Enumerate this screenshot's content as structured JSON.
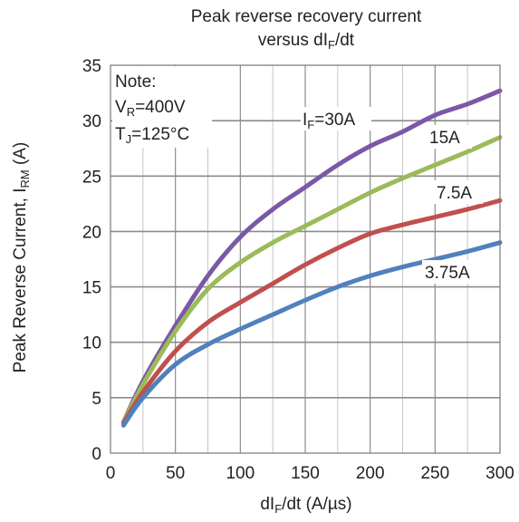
{
  "chart_data": {
    "type": "line",
    "title_line1": "Peak reverse recovery current",
    "title_line2": {
      "pre": "versus dI",
      "sub": "F",
      "post": "/dt"
    },
    "xlabel": {
      "pre": "dI",
      "sub": "F",
      "post": "/dt (A/µs)"
    },
    "ylabel": {
      "pre": "Peak Reverse Current, I",
      "sub": "RM",
      "post": " (A)"
    },
    "xlim": [
      0,
      300
    ],
    "ylim": [
      0,
      35
    ],
    "x_ticks": [
      "0",
      "50",
      "100",
      "150",
      "200",
      "250",
      "300"
    ],
    "y_ticks": [
      "0",
      "5",
      "10",
      "15",
      "20",
      "25",
      "30",
      "35"
    ],
    "grid": true,
    "note": {
      "line1": "Note:",
      "line2": {
        "pre": "V",
        "sub": "R",
        "post": "=400V"
      },
      "line3": {
        "pre": "T",
        "sub": "J",
        "post": "=125°C"
      }
    },
    "series": [
      {
        "label_pre": "I",
        "label_sub": "F",
        "label_post": "=30A",
        "color": "#7b58a6",
        "x": [
          10,
          25,
          50,
          75,
          100,
          125,
          150,
          175,
          200,
          225,
          250,
          275,
          300
        ],
        "y": [
          2.8,
          6.5,
          11.5,
          16.0,
          19.5,
          22.0,
          24.0,
          26.0,
          27.7,
          29.0,
          30.5,
          31.5,
          32.7
        ]
      },
      {
        "label_pre": "15A",
        "label_sub": "",
        "label_post": "",
        "color": "#9bbb59",
        "x": [
          10,
          25,
          50,
          75,
          100,
          125,
          150,
          175,
          200,
          225,
          250,
          275,
          300
        ],
        "y": [
          2.8,
          6.2,
          11.0,
          14.8,
          17.2,
          19.0,
          20.5,
          22.0,
          23.5,
          24.8,
          26.0,
          27.2,
          28.5
        ]
      },
      {
        "label_pre": "7.5A",
        "label_sub": "",
        "label_post": "",
        "color": "#c0504d",
        "x": [
          10,
          25,
          50,
          75,
          100,
          125,
          150,
          175,
          200,
          225,
          250,
          275,
          300
        ],
        "y": [
          2.7,
          5.5,
          9.2,
          11.8,
          13.6,
          15.3,
          17.0,
          18.5,
          19.8,
          20.6,
          21.3,
          22.0,
          22.8
        ]
      },
      {
        "label_pre": "3.75A",
        "label_sub": "",
        "label_post": "",
        "color": "#4f81bd",
        "x": [
          10,
          25,
          50,
          75,
          100,
          125,
          150,
          175,
          200,
          225,
          250,
          275,
          300
        ],
        "y": [
          2.5,
          5.0,
          8.0,
          9.8,
          11.2,
          12.5,
          13.8,
          15.0,
          16.0,
          16.8,
          17.5,
          18.2,
          19.0
        ]
      }
    ]
  }
}
